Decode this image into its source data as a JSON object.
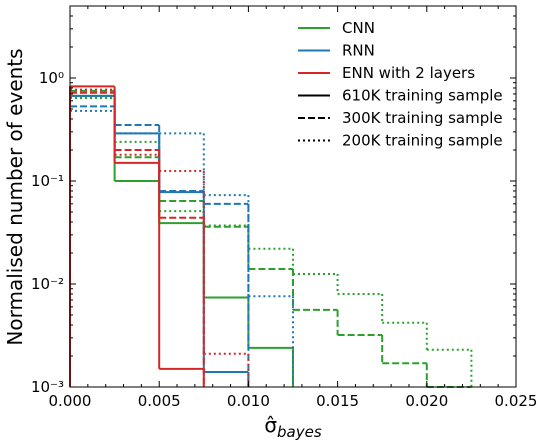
{
  "chart_data": {
    "type": "step-histogram",
    "x_label": "σ̂",
    "x_label_subscript": "bayes",
    "y_label": "Normalised number of events",
    "log_y": true,
    "bins": [
      0,
      0.0025,
      0.005,
      0.0075,
      0.01,
      0.0125,
      0.015,
      0.0175,
      0.02,
      0.0225,
      0.025
    ],
    "xlim": [
      0,
      0.025
    ],
    "xticks": [
      {
        "value": 0,
        "label": "0.000"
      },
      {
        "value": 0.005,
        "label": "0.005"
      },
      {
        "value": 0.01,
        "label": "0.010"
      },
      {
        "value": 0.015,
        "label": "0.015"
      },
      {
        "value": 0.02,
        "label": "0.020"
      },
      {
        "value": 0.025,
        "label": "0.025"
      }
    ],
    "ylim": [
      0.001,
      5
    ],
    "yticks": [
      {
        "value": 0.001,
        "label": "10⁻³"
      },
      {
        "value": 0.01,
        "label": "10⁻²"
      },
      {
        "value": 0.1,
        "label": "10⁻¹"
      },
      {
        "value": 1,
        "label": "10⁰"
      }
    ],
    "legend_position": "upper right",
    "line_styles": [
      {
        "name": "610K training sample",
        "dash": "solid"
      },
      {
        "name": "300K training sample",
        "dash": "dashed"
      },
      {
        "name": "200K training sample",
        "dash": "dotted"
      }
    ],
    "series": [
      {
        "name": "CNN",
        "color": "#2ca02c",
        "samples": [
          {
            "values": [
              0.67,
              0.1,
              0.039,
              0.0074,
              0.0024,
              null,
              null,
              null,
              null,
              null
            ]
          },
          {
            "values": [
              0.75,
              0.17,
              0.064,
              0.036,
              0.014,
              0.0056,
              0.0032,
              0.0017,
              0.001,
              null
            ]
          },
          {
            "values": [
              0.64,
              0.24,
              0.051,
              0.037,
              0.022,
              0.0125,
              0.008,
              0.0042,
              0.0023,
              null
            ]
          }
        ]
      },
      {
        "name": "RNN",
        "color": "#1f77b4",
        "samples": [
          {
            "values": [
              0.67,
              0.29,
              0.078,
              0.0014,
              null,
              null,
              null,
              null,
              null,
              null
            ]
          },
          {
            "values": [
              0.53,
              0.35,
              0.08,
              0.06,
              null,
              null,
              null,
              null,
              null,
              null
            ]
          },
          {
            "values": [
              0.48,
              0.29,
              0.29,
              0.073,
              0.0076,
              null,
              null,
              null,
              null,
              null
            ]
          }
        ]
      },
      {
        "name": "ENN with 2 layers",
        "color": "#d62728",
        "samples": [
          {
            "values": [
              0.83,
              0.15,
              0.0015,
              null,
              null,
              null,
              null,
              null,
              null,
              null
            ]
          },
          {
            "values": [
              0.72,
              0.2,
              0.044,
              null,
              null,
              null,
              null,
              null,
              null,
              null
            ]
          },
          {
            "values": [
              0.77,
              0.18,
              0.125,
              0.0021,
              null,
              null,
              null,
              null,
              null,
              null
            ]
          }
        ]
      }
    ]
  }
}
